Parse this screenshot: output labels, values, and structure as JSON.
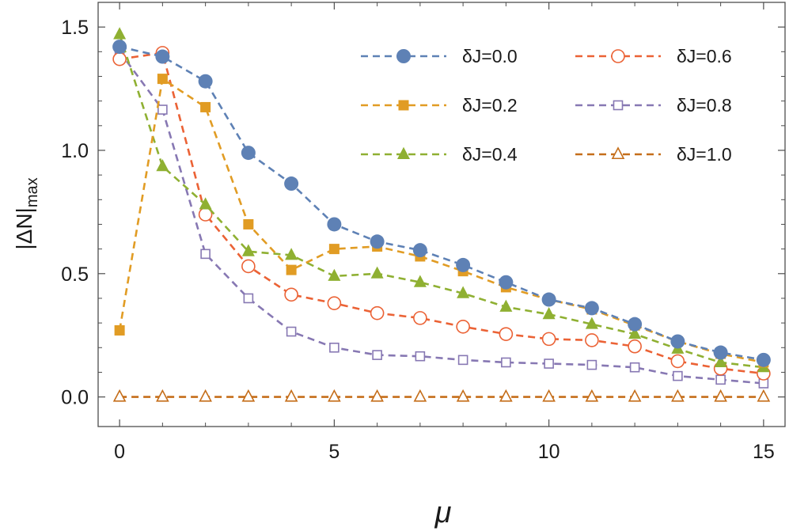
{
  "chart_data": {
    "type": "line",
    "xlabel": "μ",
    "ylabel_main": "|ΔN|",
    "ylabel_sub": "max",
    "xlim": [
      -0.5,
      15.5
    ],
    "ylim": [
      -0.12,
      1.6
    ],
    "xticks": [
      0,
      5,
      10,
      15
    ],
    "yticks": [
      0.0,
      0.5,
      1.0,
      1.5
    ],
    "xtick_labels": [
      "0",
      "5",
      "10",
      "15"
    ],
    "ytick_labels": [
      "0.0",
      "0.5",
      "1.0",
      "1.5"
    ],
    "legend_position": "top-right",
    "x": [
      0,
      1,
      2,
      3,
      4,
      5,
      6,
      7,
      8,
      9,
      10,
      11,
      12,
      13,
      14,
      15
    ],
    "series": [
      {
        "name": "δJ=0.0",
        "color": "#5e81b5",
        "marker": "circle-filled",
        "values": [
          1.42,
          1.38,
          1.28,
          0.99,
          0.865,
          0.7,
          0.63,
          0.595,
          0.535,
          0.465,
          0.395,
          0.36,
          0.295,
          0.225,
          0.18,
          0.15
        ]
      },
      {
        "name": "δJ=0.2",
        "color": "#e19c24",
        "marker": "square-filled",
        "values": [
          0.27,
          1.29,
          1.175,
          0.7,
          0.515,
          0.6,
          0.61,
          0.57,
          0.51,
          0.445,
          0.395,
          0.355,
          0.29,
          0.225,
          0.175,
          0.14
        ]
      },
      {
        "name": "δJ=0.4",
        "color": "#8fb032",
        "marker": "triangle-filled",
        "values": [
          1.47,
          0.935,
          0.78,
          0.59,
          0.575,
          0.49,
          0.5,
          0.465,
          0.42,
          0.365,
          0.335,
          0.295,
          0.255,
          0.195,
          0.14,
          0.12
        ]
      },
      {
        "name": "δJ=0.6",
        "color": "#eb6235",
        "marker": "circle-open",
        "values": [
          1.37,
          1.395,
          0.74,
          0.53,
          0.415,
          0.38,
          0.34,
          0.32,
          0.285,
          0.255,
          0.235,
          0.23,
          0.205,
          0.145,
          0.115,
          0.095
        ]
      },
      {
        "name": "δJ=0.8",
        "color": "#8778b3",
        "marker": "square-open",
        "values": [
          1.4,
          1.165,
          0.58,
          0.4,
          0.265,
          0.2,
          0.17,
          0.165,
          0.15,
          0.14,
          0.135,
          0.13,
          0.12,
          0.085,
          0.07,
          0.055
        ]
      },
      {
        "name": "δJ=1.0",
        "color": "#c56e1a",
        "marker": "triangle-open",
        "values": [
          0.0,
          0.0,
          0.0,
          0.0,
          0.0,
          0.0,
          0.0,
          0.0,
          0.0,
          0.0,
          0.0,
          0.0,
          0.0,
          0.0,
          0.0,
          0.0
        ]
      }
    ]
  }
}
